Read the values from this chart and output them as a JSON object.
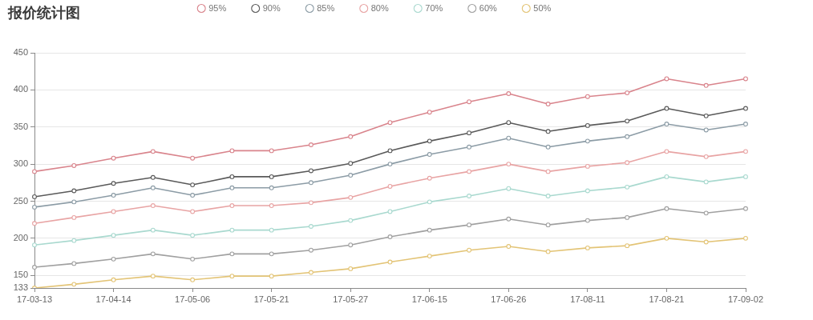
{
  "chart_data": {
    "type": "line",
    "title": "报价统计图",
    "categories": [
      "17-03-13",
      null,
      "17-04-14",
      null,
      "17-05-06",
      null,
      "17-05-21",
      null,
      "17-05-27",
      null,
      "17-06-15",
      null,
      "17-06-26",
      null,
      "17-08-11",
      null,
      "17-08-21",
      null,
      "17-09-02"
    ],
    "series": [
      {
        "name": "95%",
        "color": "#d9848c",
        "values": [
          290,
          298,
          308,
          317,
          308,
          318,
          318,
          326,
          337,
          356,
          370,
          384,
          395,
          381,
          391,
          396,
          415,
          406,
          415
        ]
      },
      {
        "name": "90%",
        "color": "#5a5a5a",
        "values": [
          256,
          264,
          274,
          282,
          272,
          283,
          283,
          291,
          301,
          318,
          331,
          342,
          356,
          344,
          352,
          358,
          375,
          365,
          375
        ]
      },
      {
        "name": "85%",
        "color": "#8c9ca6",
        "values": [
          242,
          249,
          258,
          268,
          258,
          268,
          268,
          275,
          285,
          300,
          313,
          323,
          335,
          323,
          331,
          337,
          354,
          346,
          354
        ]
      },
      {
        "name": "80%",
        "color": "#e8a4a4",
        "values": [
          220,
          228,
          236,
          244,
          236,
          244,
          244,
          248,
          255,
          270,
          281,
          290,
          300,
          290,
          297,
          302,
          317,
          310,
          317
        ]
      },
      {
        "name": "70%",
        "color": "#a9d9cf",
        "values": [
          191,
          197,
          204,
          211,
          204,
          211,
          211,
          216,
          224,
          236,
          249,
          257,
          267,
          257,
          264,
          269,
          283,
          276,
          283
        ]
      },
      {
        "name": "60%",
        "color": "#a0a0a0",
        "values": [
          161,
          166,
          172,
          179,
          172,
          179,
          179,
          184,
          191,
          202,
          211,
          218,
          226,
          218,
          224,
          228,
          240,
          234,
          240
        ]
      },
      {
        "name": "50%",
        "color": "#e3c476",
        "values": [
          133,
          138,
          144,
          149,
          144,
          149,
          149,
          154,
          159,
          168,
          176,
          184,
          189,
          182,
          187,
          190,
          200,
          195,
          200
        ]
      }
    ],
    "ylim": [
      133,
      450
    ],
    "yticks": [
      133,
      150,
      200,
      250,
      300,
      350,
      400,
      450
    ],
    "grid": "y",
    "legend": "top",
    "marker": "circle"
  }
}
